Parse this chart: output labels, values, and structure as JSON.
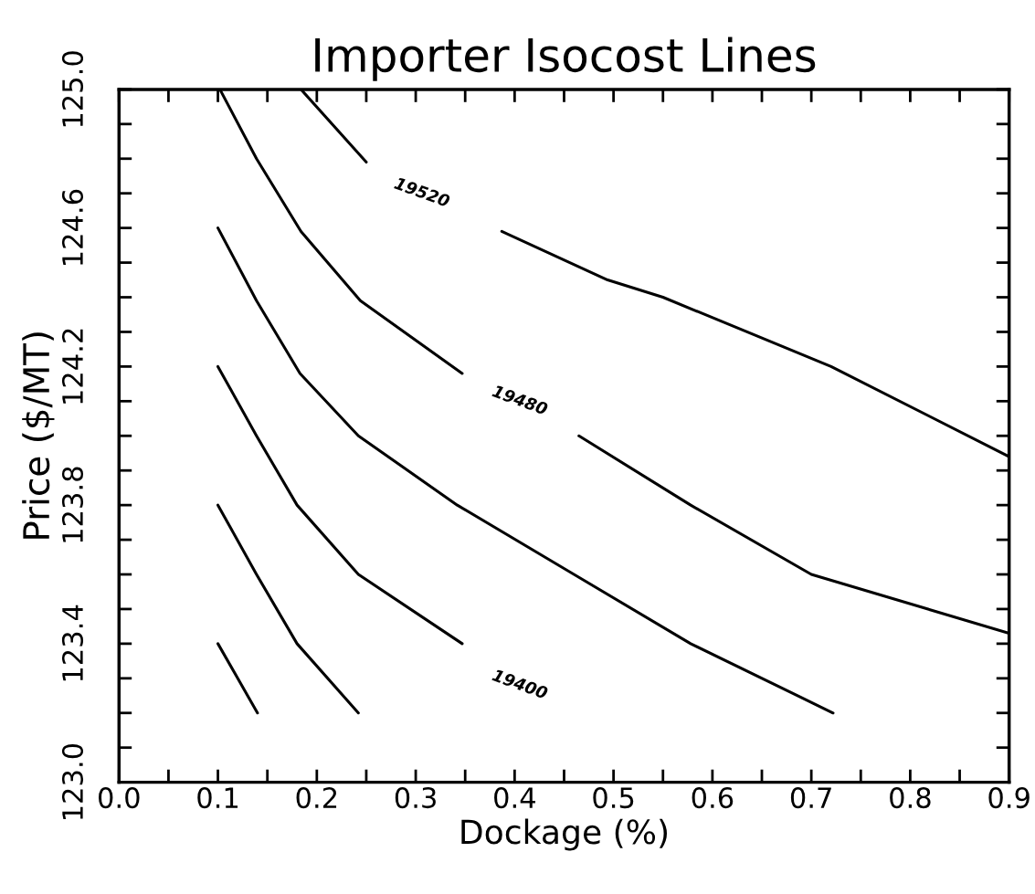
{
  "chart_data": {
    "type": "line",
    "title": "Importer Isocost Lines",
    "xlabel": "Dockage (%)",
    "ylabel": "Price ($/MT)",
    "xlim": [
      0,
      0.9
    ],
    "ylim": [
      123.0,
      125.0
    ],
    "xticks": [
      {
        "value": 0,
        "label": "0.0"
      },
      {
        "value": 0.05,
        "label": null
      },
      0.1,
      {
        "value": 0.15,
        "label": null
      },
      0.2,
      {
        "value": 0.25,
        "label": null
      },
      0.3,
      {
        "value": 0.35,
        "label": null
      },
      0.4,
      {
        "value": 0.45,
        "label": null
      },
      0.5,
      {
        "value": 0.55,
        "label": null
      },
      0.6,
      {
        "value": 0.65,
        "label": null
      },
      0.7,
      {
        "value": 0.75,
        "label": null
      },
      0.8,
      {
        "value": 0.85,
        "label": null
      },
      0.9
    ],
    "yticks": [
      {
        "value": 123.0,
        "label": "123.0"
      },
      {
        "value": 123.1,
        "label": null
      },
      {
        "value": 123.2,
        "label": null
      },
      {
        "value": 123.3,
        "label": null
      },
      {
        "value": 123.4,
        "label": "123.4"
      },
      {
        "value": 123.5,
        "label": null
      },
      {
        "value": 123.6,
        "label": null
      },
      {
        "value": 123.7,
        "label": null
      },
      {
        "value": 123.8,
        "label": "123.8"
      },
      {
        "value": 123.9,
        "label": null
      },
      {
        "value": 124.0,
        "label": null
      },
      {
        "value": 124.1,
        "label": null
      },
      {
        "value": 124.2,
        "label": "124.2"
      },
      {
        "value": 124.3,
        "label": null
      },
      {
        "value": 124.4,
        "label": null
      },
      {
        "value": 124.5,
        "label": null
      },
      {
        "value": 124.6,
        "label": "124.6"
      },
      {
        "value": 124.7,
        "label": null
      },
      {
        "value": 124.8,
        "label": null
      },
      {
        "value": 124.9,
        "label": null
      },
      {
        "value": 125.0,
        "label": "125.0"
      }
    ],
    "grid": false,
    "legend": false,
    "marker": "none",
    "line_style": "solid",
    "series": [
      {
        "color": "#000000",
        "x": [
          0.1,
          0.12,
          0.14
        ],
        "values": [
          123.4,
          123.3,
          123.2
        ]
      },
      {
        "color": "#000000",
        "x": [
          0.1,
          0.139,
          0.18,
          0.242
        ],
        "values": [
          123.8,
          123.6,
          123.4,
          123.2
        ]
      },
      {
        "color": "#000000",
        "x": [
          0.1,
          0.139,
          0.18,
          0.242,
          0.347
        ],
        "values": [
          124.2,
          124.0,
          123.8,
          123.6,
          123.4
        ]
      },
      {
        "color": "#000000",
        "x": [
          0.1,
          0.139,
          0.183,
          0.242,
          0.342,
          0.46,
          0.578,
          0.722
        ],
        "values": [
          124.6,
          124.39,
          124.18,
          124.0,
          123.8,
          123.6,
          123.4,
          123.2
        ]
      },
      {
        "color": "#000000",
        "x": [
          0.102,
          0.139,
          0.184,
          0.244,
          0.347
        ],
        "values": [
          125.0,
          124.8,
          124.59,
          124.39,
          124.18
        ]
      },
      {
        "color": "#000000",
        "x": [
          0.465,
          0.578,
          0.7,
          0.9
        ],
        "values": [
          124.0,
          123.8,
          123.6,
          123.43
        ]
      },
      {
        "color": "#000000",
        "x": [
          0.184,
          0.25
        ],
        "values": [
          125.0,
          124.79
        ]
      },
      {
        "color": "#000000",
        "x": [
          0.387,
          0.494,
          0.55,
          0.72,
          0.9
        ],
        "values": [
          124.59,
          124.45,
          124.4,
          124.2,
          123.94
        ]
      }
    ],
    "annotations": [
      "19520",
      "19480",
      "19400"
    ]
  }
}
